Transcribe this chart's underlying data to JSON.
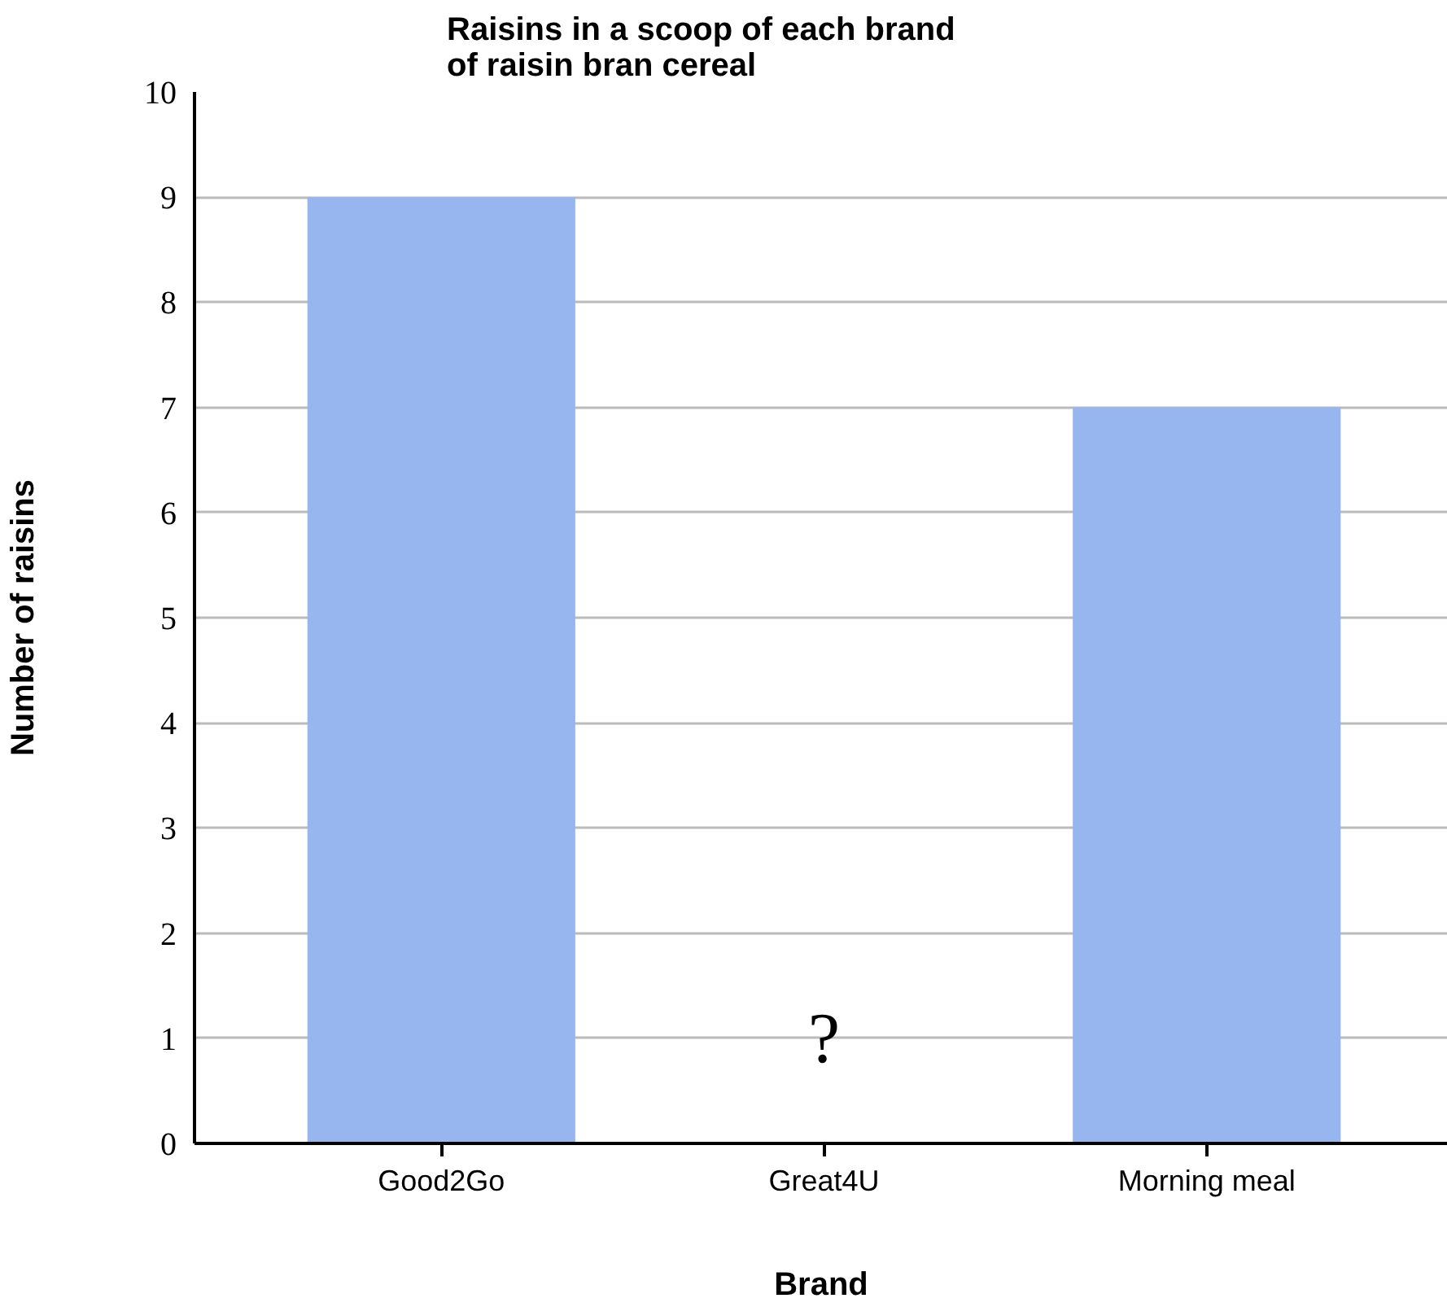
{
  "chart_data": {
    "type": "bar",
    "title": "Raisins in a scoop of each brand of raisin bran cereal",
    "xlabel": "Brand",
    "ylabel": "Number of raisins",
    "categories": [
      "Good2Go",
      "Great4U",
      "Morning meal"
    ],
    "values": [
      9,
      null,
      7
    ],
    "color": "#97b5ee",
    "ylim": [
      0,
      10
    ],
    "yticks": [
      0,
      1,
      2,
      3,
      4,
      5,
      6,
      7,
      8,
      9,
      10
    ],
    "grid": "y",
    "annotations": [
      "?"
    ]
  }
}
